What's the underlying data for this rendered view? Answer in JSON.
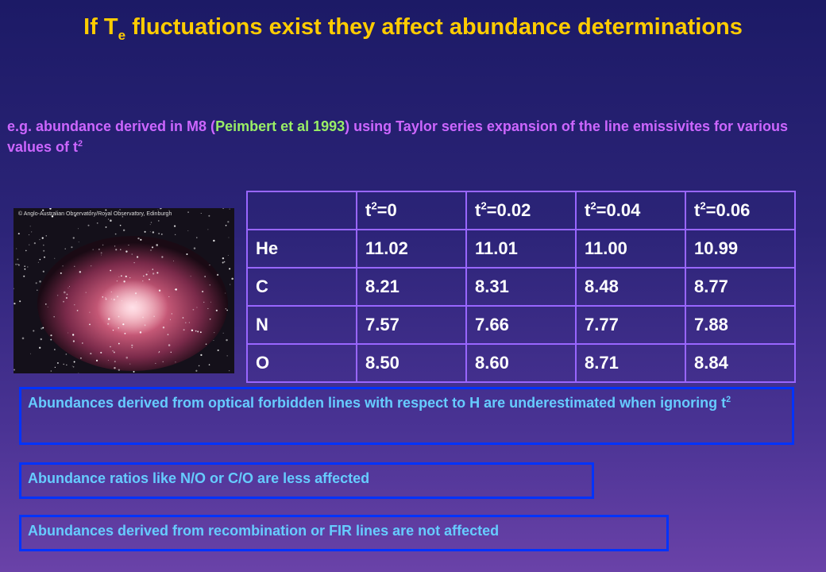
{
  "title": {
    "pre": "If T",
    "sub": "e",
    "post": "fluctuations exist they affect abundance determinations"
  },
  "intro": {
    "pre": "e.g. abundance derived in  M8 (",
    "ref": "Peimbert et al 1993",
    "post": ") using Taylor series expansion of the line emissivites for various values of t",
    "sup": "2"
  },
  "image": {
    "caption": "© Anglo-Australian Observatory/Royal Observatory, Edinburgh"
  },
  "table": {
    "headers": [
      {
        "base": "t",
        "sup": "2",
        "rest": "=0"
      },
      {
        "base": "t",
        "sup": "2",
        "rest": "=0.02"
      },
      {
        "base": "t",
        "sup": "2",
        "rest": "=0.04"
      },
      {
        "base": "t",
        "sup": "2",
        "rest": "=0.06"
      }
    ],
    "rows": [
      [
        "He",
        "11.02",
        "11.01",
        "11.00",
        "10.99"
      ],
      [
        "C",
        "8.21",
        "8.31",
        "8.48",
        "8.77"
      ],
      [
        "N",
        "7.57",
        "7.66",
        "7.77",
        "7.88"
      ],
      [
        "O",
        "8.50",
        "8.60",
        "8.71",
        "8.84"
      ]
    ]
  },
  "notes": [
    {
      "text": "Abundances derived from optical forbidden lines with respect to H are underestimated when ignoring t",
      "sup": "2"
    },
    {
      "text": "Abundance ratios like N/O or C/O are less affected"
    },
    {
      "text": "Abundances derived from recombination or FIR lines are not affected"
    }
  ]
}
